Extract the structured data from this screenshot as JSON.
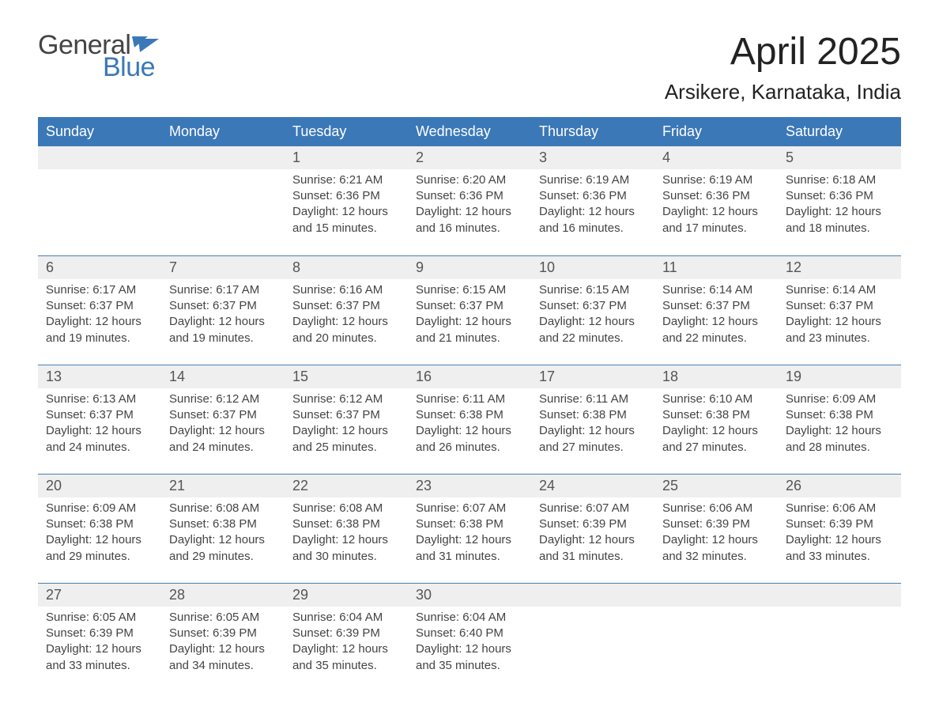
{
  "logo": {
    "word_general": "General",
    "word_blue": "Blue",
    "flag_color": "#3b78b8"
  },
  "title": {
    "month": "April 2025",
    "location": "Arsikere, Karnataka, India"
  },
  "colors": {
    "header_bg": "#3b78b8",
    "header_text": "#ffffff",
    "strip_bg": "#efefef",
    "strip_border": "#4a7fb5",
    "body_text": "#444444",
    "page_bg": "#ffffff"
  },
  "fonts": {
    "month_title_size": 48,
    "location_size": 26,
    "dayname_size": 18,
    "daynum_size": 18,
    "body_size": 15
  },
  "day_names": [
    "Sunday",
    "Monday",
    "Tuesday",
    "Wednesday",
    "Thursday",
    "Friday",
    "Saturday"
  ],
  "labels": {
    "sunrise": "Sunrise:",
    "sunset": "Sunset:",
    "daylight": "Daylight:"
  },
  "weeks": [
    [
      null,
      null,
      {
        "n": "1",
        "sunrise": "6:21 AM",
        "sunset": "6:36 PM",
        "daylight": "12 hours and 15 minutes."
      },
      {
        "n": "2",
        "sunrise": "6:20 AM",
        "sunset": "6:36 PM",
        "daylight": "12 hours and 16 minutes."
      },
      {
        "n": "3",
        "sunrise": "6:19 AM",
        "sunset": "6:36 PM",
        "daylight": "12 hours and 16 minutes."
      },
      {
        "n": "4",
        "sunrise": "6:19 AM",
        "sunset": "6:36 PM",
        "daylight": "12 hours and 17 minutes."
      },
      {
        "n": "5",
        "sunrise": "6:18 AM",
        "sunset": "6:36 PM",
        "daylight": "12 hours and 18 minutes."
      }
    ],
    [
      {
        "n": "6",
        "sunrise": "6:17 AM",
        "sunset": "6:37 PM",
        "daylight": "12 hours and 19 minutes."
      },
      {
        "n": "7",
        "sunrise": "6:17 AM",
        "sunset": "6:37 PM",
        "daylight": "12 hours and 19 minutes."
      },
      {
        "n": "8",
        "sunrise": "6:16 AM",
        "sunset": "6:37 PM",
        "daylight": "12 hours and 20 minutes."
      },
      {
        "n": "9",
        "sunrise": "6:15 AM",
        "sunset": "6:37 PM",
        "daylight": "12 hours and 21 minutes."
      },
      {
        "n": "10",
        "sunrise": "6:15 AM",
        "sunset": "6:37 PM",
        "daylight": "12 hours and 22 minutes."
      },
      {
        "n": "11",
        "sunrise": "6:14 AM",
        "sunset": "6:37 PM",
        "daylight": "12 hours and 22 minutes."
      },
      {
        "n": "12",
        "sunrise": "6:14 AM",
        "sunset": "6:37 PM",
        "daylight": "12 hours and 23 minutes."
      }
    ],
    [
      {
        "n": "13",
        "sunrise": "6:13 AM",
        "sunset": "6:37 PM",
        "daylight": "12 hours and 24 minutes."
      },
      {
        "n": "14",
        "sunrise": "6:12 AM",
        "sunset": "6:37 PM",
        "daylight": "12 hours and 24 minutes."
      },
      {
        "n": "15",
        "sunrise": "6:12 AM",
        "sunset": "6:37 PM",
        "daylight": "12 hours and 25 minutes."
      },
      {
        "n": "16",
        "sunrise": "6:11 AM",
        "sunset": "6:38 PM",
        "daylight": "12 hours and 26 minutes."
      },
      {
        "n": "17",
        "sunrise": "6:11 AM",
        "sunset": "6:38 PM",
        "daylight": "12 hours and 27 minutes."
      },
      {
        "n": "18",
        "sunrise": "6:10 AM",
        "sunset": "6:38 PM",
        "daylight": "12 hours and 27 minutes."
      },
      {
        "n": "19",
        "sunrise": "6:09 AM",
        "sunset": "6:38 PM",
        "daylight": "12 hours and 28 minutes."
      }
    ],
    [
      {
        "n": "20",
        "sunrise": "6:09 AM",
        "sunset": "6:38 PM",
        "daylight": "12 hours and 29 minutes."
      },
      {
        "n": "21",
        "sunrise": "6:08 AM",
        "sunset": "6:38 PM",
        "daylight": "12 hours and 29 minutes."
      },
      {
        "n": "22",
        "sunrise": "6:08 AM",
        "sunset": "6:38 PM",
        "daylight": "12 hours and 30 minutes."
      },
      {
        "n": "23",
        "sunrise": "6:07 AM",
        "sunset": "6:38 PM",
        "daylight": "12 hours and 31 minutes."
      },
      {
        "n": "24",
        "sunrise": "6:07 AM",
        "sunset": "6:39 PM",
        "daylight": "12 hours and 31 minutes."
      },
      {
        "n": "25",
        "sunrise": "6:06 AM",
        "sunset": "6:39 PM",
        "daylight": "12 hours and 32 minutes."
      },
      {
        "n": "26",
        "sunrise": "6:06 AM",
        "sunset": "6:39 PM",
        "daylight": "12 hours and 33 minutes."
      }
    ],
    [
      {
        "n": "27",
        "sunrise": "6:05 AM",
        "sunset": "6:39 PM",
        "daylight": "12 hours and 33 minutes."
      },
      {
        "n": "28",
        "sunrise": "6:05 AM",
        "sunset": "6:39 PM",
        "daylight": "12 hours and 34 minutes."
      },
      {
        "n": "29",
        "sunrise": "6:04 AM",
        "sunset": "6:39 PM",
        "daylight": "12 hours and 35 minutes."
      },
      {
        "n": "30",
        "sunrise": "6:04 AM",
        "sunset": "6:40 PM",
        "daylight": "12 hours and 35 minutes."
      },
      null,
      null,
      null
    ]
  ]
}
